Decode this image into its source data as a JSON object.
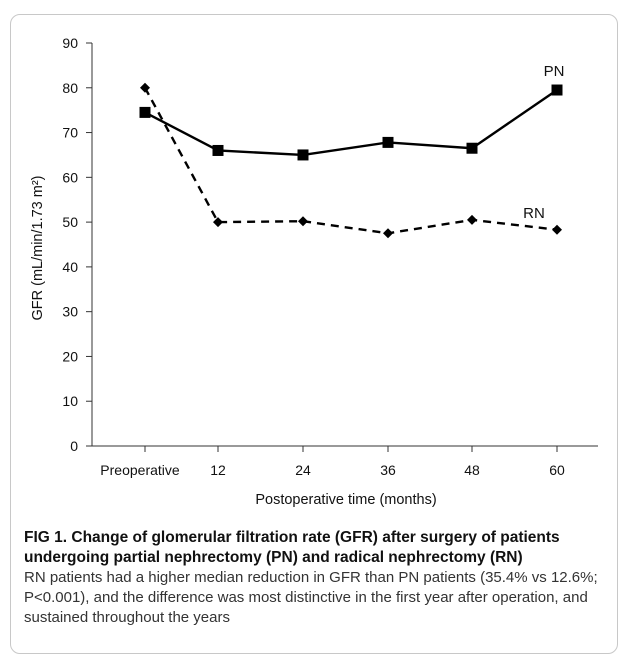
{
  "chart_data": {
    "type": "line",
    "xlabel": "Postoperative time (months)",
    "ylabel": "GFR (mL/min/1.73 m²)",
    "categories": [
      "Preoperative",
      "12",
      "24",
      "36",
      "48",
      "60"
    ],
    "ylim": [
      0,
      90
    ],
    "yticks": [
      0,
      10,
      20,
      30,
      40,
      50,
      60,
      70,
      80,
      90
    ],
    "grid": false,
    "series": [
      {
        "name": "PN",
        "values": [
          74.5,
          66,
          65,
          67.8,
          66.5,
          79.5
        ],
        "marker": "square",
        "line": "solid",
        "color": "#000000"
      },
      {
        "name": "RN",
        "values": [
          80,
          50,
          50.2,
          47.5,
          50.5,
          48.3
        ],
        "marker": "diamond",
        "line": "dashed",
        "color": "#000000"
      }
    ]
  },
  "caption": {
    "title": "FIG 1. Change of glomerular filtration rate (GFR) after surgery of patients undergoing partial nephrectomy (PN) and radical nephrectomy (RN)",
    "text": "RN patients had a higher median reduction in GFR than PN patients (35.4% vs 12.6%; P<0.001), and the difference was most distinctive in the first year after operation, and sustained throughout the years"
  }
}
